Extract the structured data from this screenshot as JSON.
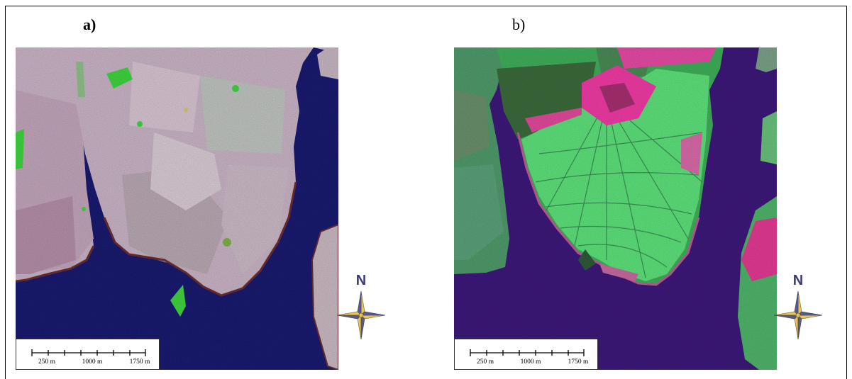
{
  "panels": [
    {
      "label": "a)",
      "scale_ticks": [
        "250 m",
        "1000 m",
        "1750 m"
      ],
      "north": "N",
      "icon": "compass-rose-icon"
    },
    {
      "label": "b)",
      "scale_ticks": [
        "250 m",
        "1000 m",
        "1750 m"
      ],
      "north": "N",
      "icon": "compass-rose-icon"
    }
  ],
  "colors": {
    "water_a": "#1c1d6e",
    "water_b": "#3d1a7a",
    "land_pink": "#c9aec4",
    "vegetation_green": "#4fd66a",
    "field_magenta": "#e0309a"
  }
}
